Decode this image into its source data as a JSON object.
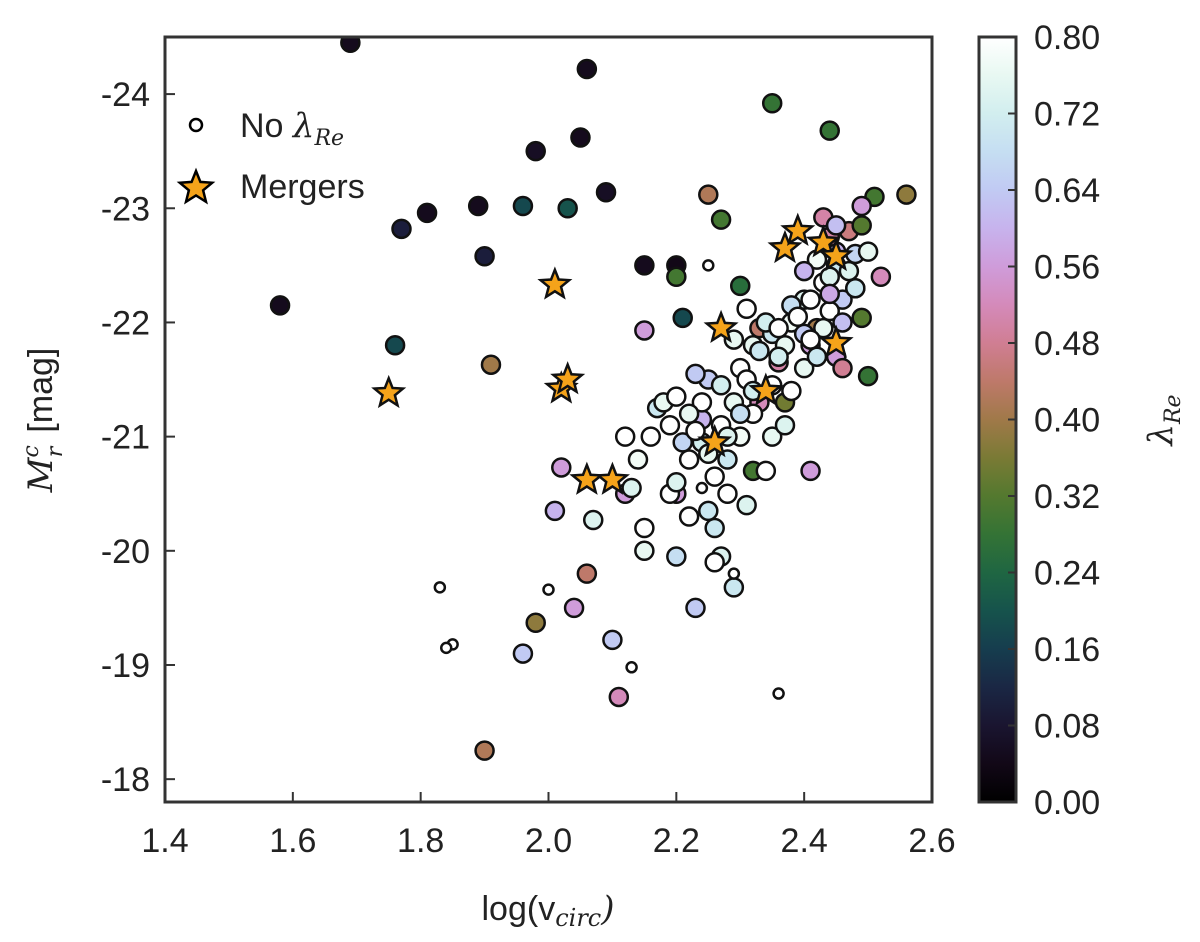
{
  "chart_data": {
    "type": "scatter",
    "xlabel": {
      "main": "log(v",
      "sub": "circ",
      "close": ")"
    },
    "ylabel": {
      "main": "M",
      "sup": "c",
      "sub": "r",
      "unit": "[mag]"
    },
    "xlim": [
      1.4,
      2.6
    ],
    "ylim": [
      -17.8,
      -24.5
    ],
    "y_inverted": true,
    "x_ticks": [
      "1.4",
      "1.6",
      "1.8",
      "2.0",
      "2.2",
      "2.4",
      "2.6"
    ],
    "x_tick_values": [
      1.4,
      1.6,
      1.8,
      2.0,
      2.2,
      2.4,
      2.6
    ],
    "y_ticks": [
      "-18",
      "-19",
      "-20",
      "-21",
      "-22",
      "-23",
      "-24"
    ],
    "y_tick_values": [
      -18,
      -19,
      -20,
      -21,
      -22,
      -23,
      -24
    ],
    "grid": false,
    "legend": {
      "placement": "top-left",
      "entries": [
        {
          "marker": "small-open-circle",
          "text": "No ",
          "math": "λ",
          "sub": "Re"
        },
        {
          "marker": "orange-star",
          "text": "Mergers"
        }
      ]
    },
    "colorbar": {
      "label": "λ",
      "label_sub": "Re",
      "range": [
        0.0,
        0.8
      ],
      "ticks": [
        "0.00",
        "0.08",
        "0.16",
        "0.24",
        "0.32",
        "0.40",
        "0.48",
        "0.56",
        "0.64",
        "0.72",
        "0.80"
      ],
      "tick_values": [
        0.0,
        0.08,
        0.16,
        0.24,
        0.32,
        0.4,
        0.48,
        0.56,
        0.64,
        0.72,
        0.8
      ],
      "colormap": "cubehelix"
    },
    "series": [
      {
        "kind": "colored",
        "points": [
          [
            1.69,
            -24.45,
            0.05
          ],
          [
            2.06,
            -24.22,
            0.05
          ],
          [
            2.35,
            -23.92,
            0.28
          ],
          [
            2.44,
            -23.68,
            0.28
          ],
          [
            2.05,
            -23.62,
            0.05
          ],
          [
            1.98,
            -23.5,
            0.06
          ],
          [
            2.09,
            -23.14,
            0.06
          ],
          [
            1.89,
            -23.02,
            0.05
          ],
          [
            1.96,
            -23.02,
            0.18
          ],
          [
            2.03,
            -23.0,
            0.2
          ],
          [
            1.81,
            -22.96,
            0.05
          ],
          [
            1.77,
            -22.82,
            0.1
          ],
          [
            2.25,
            -23.12,
            0.42
          ],
          [
            2.27,
            -22.9,
            0.3
          ],
          [
            2.51,
            -23.1,
            0.3
          ],
          [
            2.56,
            -23.12,
            0.38
          ],
          [
            2.49,
            -23.02,
            0.56
          ],
          [
            2.43,
            -22.92,
            0.5
          ],
          [
            2.47,
            -22.8,
            0.46
          ],
          [
            2.45,
            -22.62,
            0.6
          ],
          [
            2.49,
            -22.85,
            0.32
          ],
          [
            1.9,
            -22.58,
            0.1
          ],
          [
            2.15,
            -22.5,
            0.05
          ],
          [
            2.2,
            -22.5,
            0.04
          ],
          [
            2.2,
            -22.4,
            0.3
          ],
          [
            2.52,
            -22.4,
            0.52
          ],
          [
            2.3,
            -22.32,
            0.26
          ],
          [
            2.48,
            -22.3,
            0.38
          ],
          [
            1.58,
            -22.15,
            0.05
          ],
          [
            2.21,
            -22.04,
            0.18
          ],
          [
            2.15,
            -21.93,
            0.56
          ],
          [
            2.33,
            -21.95,
            0.44
          ],
          [
            2.42,
            -21.95,
            0.4
          ],
          [
            2.49,
            -22.04,
            0.32
          ],
          [
            1.76,
            -21.8,
            0.18
          ],
          [
            2.41,
            -21.8,
            0.56
          ],
          [
            2.45,
            -21.7,
            0.56
          ],
          [
            2.5,
            -21.53,
            0.28
          ],
          [
            2.46,
            -21.6,
            0.48
          ],
          [
            1.91,
            -21.63,
            0.4
          ],
          [
            2.36,
            -21.65,
            0.5
          ],
          [
            2.37,
            -21.3,
            0.35
          ],
          [
            2.25,
            -21.5,
            0.64
          ],
          [
            2.33,
            -21.3,
            0.52
          ],
          [
            2.24,
            -21.15,
            0.6
          ],
          [
            2.41,
            -20.7,
            0.56
          ],
          [
            2.32,
            -20.7,
            0.3
          ],
          [
            2.02,
            -20.73,
            0.56
          ],
          [
            2.12,
            -20.5,
            0.56
          ],
          [
            2.2,
            -20.5,
            0.56
          ],
          [
            2.01,
            -20.35,
            0.6
          ],
          [
            2.06,
            -19.8,
            0.44
          ],
          [
            1.98,
            -19.37,
            0.38
          ],
          [
            2.04,
            -19.5,
            0.56
          ],
          [
            1.96,
            -19.1,
            0.64
          ],
          [
            2.1,
            -19.22,
            0.64
          ],
          [
            2.23,
            -19.5,
            0.64
          ],
          [
            2.11,
            -18.72,
            0.52
          ],
          [
            1.9,
            -18.25,
            0.42
          ],
          [
            2.29,
            -19.68,
            0.7
          ],
          [
            2.27,
            -19.95,
            0.74
          ],
          [
            2.2,
            -19.95,
            0.68
          ],
          [
            2.15,
            -20.0,
            0.76
          ],
          [
            2.26,
            -20.2,
            0.7
          ],
          [
            2.31,
            -20.4,
            0.74
          ],
          [
            2.07,
            -20.27,
            0.74
          ],
          [
            2.3,
            -21.6,
            0.8
          ],
          [
            2.32,
            -21.8,
            0.76
          ],
          [
            2.35,
            -21.9,
            0.7
          ],
          [
            2.38,
            -22.0,
            0.78
          ],
          [
            2.4,
            -22.2,
            0.74
          ],
          [
            2.43,
            -22.35,
            0.8
          ],
          [
            2.45,
            -22.5,
            0.7
          ],
          [
            2.48,
            -22.6,
            0.66
          ],
          [
            2.5,
            -22.62,
            0.76
          ],
          [
            2.46,
            -22.2,
            0.64
          ],
          [
            2.44,
            -22.1,
            0.8
          ],
          [
            2.4,
            -21.9,
            0.64
          ],
          [
            2.37,
            -21.8,
            0.76
          ],
          [
            2.34,
            -22.0,
            0.72
          ],
          [
            2.31,
            -22.12,
            0.8
          ],
          [
            2.29,
            -21.85,
            0.76
          ],
          [
            2.27,
            -21.45,
            0.72
          ],
          [
            2.24,
            -21.3,
            0.8
          ],
          [
            2.22,
            -21.2,
            0.76
          ],
          [
            2.19,
            -21.1,
            0.8
          ],
          [
            2.17,
            -21.25,
            0.7
          ],
          [
            2.14,
            -20.8,
            0.78
          ],
          [
            2.12,
            -21.0,
            0.8
          ],
          [
            2.13,
            -20.55,
            0.74
          ],
          [
            2.15,
            -20.2,
            0.8
          ],
          [
            2.19,
            -20.5,
            0.8
          ],
          [
            2.22,
            -20.8,
            0.8
          ],
          [
            2.24,
            -20.95,
            0.72
          ],
          [
            2.26,
            -20.65,
            0.8
          ],
          [
            2.28,
            -20.8,
            0.7
          ],
          [
            2.3,
            -21.0,
            0.78
          ],
          [
            2.32,
            -21.2,
            0.8
          ],
          [
            2.35,
            -21.0,
            0.76
          ],
          [
            2.34,
            -20.7,
            0.8
          ],
          [
            2.37,
            -21.1,
            0.74
          ],
          [
            2.38,
            -21.4,
            0.8
          ],
          [
            2.4,
            -21.6,
            0.76
          ],
          [
            2.42,
            -21.7,
            0.7
          ],
          [
            2.43,
            -21.95,
            0.76
          ],
          [
            2.44,
            -22.4,
            0.74
          ],
          [
            2.41,
            -22.2,
            0.8
          ],
          [
            2.38,
            -22.15,
            0.68
          ],
          [
            2.36,
            -21.95,
            0.8
          ],
          [
            2.33,
            -21.75,
            0.7
          ],
          [
            2.31,
            -21.5,
            0.8
          ],
          [
            2.29,
            -21.3,
            0.76
          ],
          [
            2.27,
            -21.1,
            0.8
          ],
          [
            2.25,
            -20.85,
            0.76
          ],
          [
            2.21,
            -20.95,
            0.66
          ],
          [
            2.18,
            -21.3,
            0.76
          ],
          [
            2.2,
            -20.6,
            0.74
          ],
          [
            2.22,
            -20.3,
            0.8
          ],
          [
            2.25,
            -20.35,
            0.7
          ],
          [
            2.28,
            -20.5,
            0.8
          ],
          [
            2.26,
            -19.9,
            0.8
          ],
          [
            2.46,
            -22.0,
            0.62
          ],
          [
            2.48,
            -22.3,
            0.7
          ],
          [
            2.47,
            -22.45,
            0.74
          ],
          [
            2.42,
            -22.55,
            0.78
          ],
          [
            2.39,
            -22.05,
            0.8
          ],
          [
            2.36,
            -21.7,
            0.72
          ],
          [
            2.35,
            -21.45,
            0.8
          ],
          [
            2.32,
            -21.4,
            0.72
          ],
          [
            2.3,
            -21.2,
            0.68
          ],
          [
            2.28,
            -21.0,
            0.74
          ],
          [
            2.23,
            -21.05,
            0.8
          ],
          [
            2.16,
            -21.0,
            0.8
          ],
          [
            2.2,
            -21.35,
            0.8
          ],
          [
            2.23,
            -21.55,
            0.64
          ],
          [
            2.41,
            -21.85,
            0.8
          ],
          [
            2.4,
            -22.45,
            0.6
          ],
          [
            2.44,
            -22.75,
            0.5
          ],
          [
            2.45,
            -22.85,
            0.62
          ],
          [
            2.44,
            -22.25,
            0.58
          ]
        ]
      },
      {
        "kind": "no_lambda",
        "points": [
          [
            2.25,
            -22.5
          ],
          [
            1.83,
            -19.68
          ],
          [
            2.0,
            -19.66
          ],
          [
            1.85,
            -19.18
          ],
          [
            1.84,
            -19.15
          ],
          [
            2.13,
            -18.98
          ],
          [
            2.36,
            -18.75
          ],
          [
            2.24,
            -20.55
          ],
          [
            2.29,
            -19.8
          ]
        ]
      },
      {
        "kind": "mergers",
        "points": [
          [
            2.01,
            -22.33
          ],
          [
            2.27,
            -21.95
          ],
          [
            1.75,
            -21.38
          ],
          [
            2.02,
            -21.42
          ],
          [
            2.03,
            -21.5
          ],
          [
            2.06,
            -20.62
          ],
          [
            2.1,
            -20.62
          ],
          [
            2.26,
            -20.95
          ],
          [
            2.34,
            -21.4
          ],
          [
            2.37,
            -22.65
          ],
          [
            2.39,
            -22.8
          ],
          [
            2.43,
            -22.7
          ],
          [
            2.45,
            -22.58
          ],
          [
            2.45,
            -21.82
          ]
        ]
      }
    ]
  }
}
